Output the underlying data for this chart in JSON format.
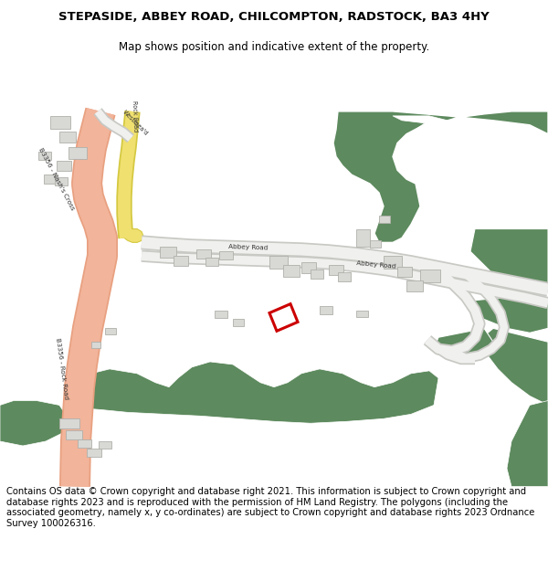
{
  "title_line1": "STEPASIDE, ABBEY ROAD, CHILCOMPTON, RADSTOCK, BA3 4HY",
  "title_line2": "Map shows position and indicative extent of the property.",
  "copyright_text": "Contains OS data © Crown copyright and database right 2021. This information is subject to Crown copyright and database rights 2023 and is reproduced with the permission of HM Land Registry. The polygons (including the associated geometry, namely x, y co-ordinates) are subject to Crown copyright and database rights 2023 Ordnance Survey 100026316.",
  "bg_color": "#ffffff",
  "map_bg": "#f8f8f5",
  "road_salmon": "#f2b49a",
  "road_salmon_edge": "#e8a080",
  "road_yellow": "#f0e070",
  "road_yellow_edge": "#d4c840",
  "road_white": "#f0f0ee",
  "road_gray_edge": "#c8c8c4",
  "green": "#5d8a5e",
  "white": "#ffffff",
  "building_fill": "#d8d8d5",
  "building_edge": "#b0b0aa",
  "red_plot": "#cc0000",
  "title_fs": 9.5,
  "subtitle_fs": 8.5,
  "copy_fs": 7.2,
  "label_fs": 5.2
}
